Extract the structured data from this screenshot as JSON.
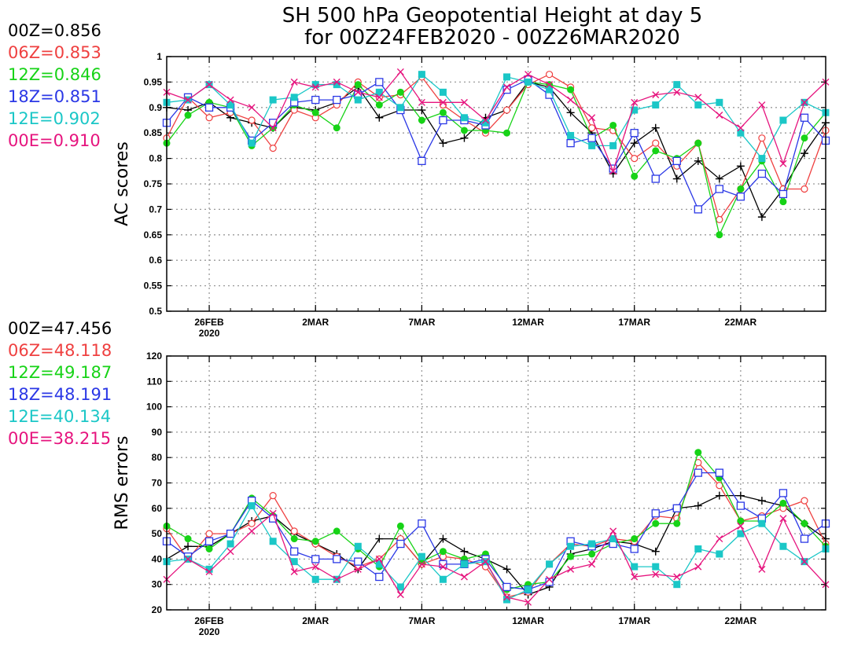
{
  "title": {
    "line1": "SH 500 hPa Geopotential Height at day 5",
    "line2": "for 00Z24FEB2020 - 00Z26MAR2020"
  },
  "series_style": [
    {
      "name": "00Z",
      "color": "#000000",
      "marker": "plus"
    },
    {
      "name": "06Z",
      "color": "#ef4040",
      "marker": "circle-open"
    },
    {
      "name": "12Z",
      "color": "#17d317",
      "marker": "circle-filled"
    },
    {
      "name": "18Z",
      "color": "#2b38e6",
      "marker": "square-open"
    },
    {
      "name": "12E",
      "color": "#1bc7c7",
      "marker": "square-filled"
    },
    {
      "name": "00E",
      "color": "#e6147e",
      "marker": "cross"
    }
  ],
  "chart_data": [
    {
      "type": "line",
      "ylabel": "AC scores",
      "ylim": [
        0.5,
        1
      ],
      "yticks": [
        "0.5",
        "0.55",
        "0.6",
        "0.65",
        "0.7",
        "0.75",
        "0.8",
        "0.85",
        "0.9",
        "0.95",
        "1"
      ],
      "x": [
        "24FEB",
        "25FEB",
        "26FEB",
        "27FEB",
        "28FEB",
        "29FEB",
        "1MAR",
        "2MAR",
        "3MAR",
        "4MAR",
        "5MAR",
        "6MAR",
        "7MAR",
        "8MAR",
        "9MAR",
        "10MAR",
        "11MAR",
        "12MAR",
        "13MAR",
        "14MAR",
        "15MAR",
        "16MAR",
        "17MAR",
        "18MAR",
        "19MAR",
        "20MAR",
        "21MAR",
        "22MAR",
        "23MAR",
        "24MAR",
        "25MAR",
        "26MAR"
      ],
      "xticks": [
        {
          "label": "26FEB",
          "sub": "2020",
          "at": "26FEB"
        },
        {
          "label": "2MAR",
          "sub": "",
          "at": "2MAR"
        },
        {
          "label": "7MAR",
          "sub": "",
          "at": "7MAR"
        },
        {
          "label": "12MAR",
          "sub": "",
          "at": "12MAR"
        },
        {
          "label": "17MAR",
          "sub": "",
          "at": "17MAR"
        },
        {
          "label": "22MAR",
          "sub": "",
          "at": "22MAR"
        }
      ],
      "legend": [
        "00Z=0.856",
        "06Z=0.853",
        "12Z=0.846",
        "18Z=0.851",
        "12E=0.902",
        "00E=0.910"
      ],
      "series": [
        {
          "name": "00Z",
          "values": [
            0.9,
            0.895,
            0.91,
            0.88,
            0.87,
            0.86,
            0.9,
            0.895,
            0.91,
            0.94,
            0.88,
            0.895,
            0.895,
            0.83,
            0.84,
            0.88,
            0.895,
            0.95,
            0.94,
            0.89,
            0.85,
            0.77,
            0.83,
            0.86,
            0.76,
            0.795,
            0.76,
            0.785,
            0.685,
            0.74,
            0.81,
            0.87
          ]
        },
        {
          "name": "06Z",
          "values": [
            0.84,
            0.92,
            0.88,
            0.89,
            0.875,
            0.82,
            0.895,
            0.88,
            0.905,
            0.95,
            0.92,
            0.925,
            0.96,
            0.905,
            0.875,
            0.85,
            0.895,
            0.945,
            0.965,
            0.94,
            0.86,
            0.855,
            0.8,
            0.83,
            0.785,
            0.83,
            0.68,
            0.74,
            0.84,
            0.74,
            0.74,
            0.855
          ]
        },
        {
          "name": "12Z",
          "values": [
            0.83,
            0.885,
            0.91,
            0.9,
            0.825,
            0.86,
            0.905,
            0.89,
            0.86,
            0.945,
            0.905,
            0.93,
            0.875,
            0.89,
            0.855,
            0.855,
            0.85,
            0.95,
            0.945,
            0.935,
            0.84,
            0.865,
            0.765,
            0.815,
            0.8,
            0.83,
            0.65,
            0.74,
            0.795,
            0.715,
            0.84,
            0.89
          ]
        },
        {
          "name": "18Z",
          "values": [
            0.87,
            0.92,
            0.9,
            0.9,
            0.835,
            0.87,
            0.91,
            0.915,
            0.915,
            0.925,
            0.95,
            0.895,
            0.795,
            0.875,
            0.875,
            0.865,
            0.935,
            0.955,
            0.925,
            0.83,
            0.84,
            0.78,
            0.85,
            0.76,
            0.795,
            0.7,
            0.74,
            0.725,
            0.77,
            0.73,
            0.88,
            0.835
          ]
        },
        {
          "name": "12E",
          "values": [
            0.91,
            0.915,
            0.945,
            0.905,
            0.83,
            0.915,
            0.92,
            0.945,
            0.945,
            0.915,
            0.93,
            0.9,
            0.965,
            0.93,
            0.88,
            0.87,
            0.96,
            0.95,
            0.935,
            0.845,
            0.825,
            0.825,
            0.895,
            0.905,
            0.945,
            0.905,
            0.91,
            0.85,
            0.8,
            0.875,
            0.91,
            0.89
          ]
        },
        {
          "name": "00E",
          "values": [
            0.93,
            0.915,
            0.945,
            0.915,
            0.9,
            0.86,
            0.95,
            0.94,
            0.95,
            0.93,
            0.92,
            0.97,
            0.91,
            0.91,
            0.91,
            0.875,
            0.94,
            0.965,
            0.945,
            0.915,
            0.88,
            0.775,
            0.91,
            0.925,
            0.93,
            0.92,
            0.885,
            0.86,
            0.905,
            0.79,
            0.91,
            0.95
          ]
        }
      ]
    },
    {
      "type": "line",
      "ylabel": "RMS errors",
      "ylim": [
        20,
        120
      ],
      "yticks": [
        "20",
        "30",
        "40",
        "50",
        "60",
        "70",
        "80",
        "90",
        "100",
        "110",
        "120"
      ],
      "x": [
        "24FEB",
        "25FEB",
        "26FEB",
        "27FEB",
        "28FEB",
        "29FEB",
        "1MAR",
        "2MAR",
        "3MAR",
        "4MAR",
        "5MAR",
        "6MAR",
        "7MAR",
        "8MAR",
        "9MAR",
        "10MAR",
        "11MAR",
        "12MAR",
        "13MAR",
        "14MAR",
        "15MAR",
        "16MAR",
        "17MAR",
        "18MAR",
        "19MAR",
        "20MAR",
        "21MAR",
        "22MAR",
        "23MAR",
        "24MAR",
        "25MAR",
        "26MAR"
      ],
      "xticks": [
        {
          "label": "26FEB",
          "sub": "2020",
          "at": "26FEB"
        },
        {
          "label": "2MAR",
          "sub": "",
          "at": "2MAR"
        },
        {
          "label": "7MAR",
          "sub": "",
          "at": "7MAR"
        },
        {
          "label": "12MAR",
          "sub": "",
          "at": "12MAR"
        },
        {
          "label": "17MAR",
          "sub": "",
          "at": "17MAR"
        },
        {
          "label": "22MAR",
          "sub": "",
          "at": "22MAR"
        }
      ],
      "legend": [
        "00Z=47.456",
        "06Z=48.118",
        "12Z=49.187",
        "18Z=48.191",
        "12E=40.134",
        "00E=38.215"
      ],
      "series": [
        {
          "name": "00Z",
          "values": [
            40,
            45,
            45,
            50,
            55,
            57,
            50,
            46,
            42,
            36,
            48,
            48,
            38,
            48,
            43,
            40,
            36,
            26,
            29,
            42,
            44,
            47,
            46,
            43,
            60,
            61,
            65,
            65,
            63,
            61,
            54,
            48
          ]
        },
        {
          "name": "06Z",
          "values": [
            52,
            40,
            50,
            50,
            54,
            65,
            51,
            46,
            41,
            37,
            40,
            48,
            38,
            41,
            40,
            37,
            25,
            27,
            38,
            46,
            45,
            48,
            47,
            57,
            56,
            78,
            69,
            55,
            57,
            60,
            63,
            46
          ]
        },
        {
          "name": "12Z",
          "values": [
            53,
            48,
            44,
            50,
            64,
            57,
            48,
            47,
            51,
            44,
            37,
            53,
            39,
            43,
            40,
            42,
            28,
            30,
            31,
            41,
            42,
            46,
            48,
            54,
            54,
            82,
            72,
            55,
            55,
            62,
            54,
            45
          ]
        },
        {
          "name": "18Z",
          "values": [
            47,
            41,
            47,
            50,
            63,
            56,
            43,
            40,
            40,
            39,
            33,
            46,
            54,
            38,
            38,
            40,
            29,
            28,
            31,
            47,
            45,
            46,
            44,
            58,
            60,
            74,
            74,
            61,
            56,
            66,
            48,
            54
          ]
        },
        {
          "name": "12E",
          "values": [
            39,
            40,
            36,
            46,
            61,
            47,
            39,
            32,
            32,
            45,
            38,
            29,
            41,
            32,
            38,
            39,
            24,
            28,
            38,
            45,
            46,
            48,
            37,
            37,
            30,
            44,
            42,
            50,
            54,
            45,
            39,
            44
          ]
        },
        {
          "name": "00E",
          "values": [
            32,
            40,
            35,
            43,
            51,
            58,
            35,
            37,
            32,
            36,
            40,
            26,
            38,
            37,
            33,
            39,
            25,
            23,
            32,
            36,
            38,
            51,
            33,
            34,
            33,
            37,
            48,
            53,
            36,
            56,
            39,
            30
          ]
        }
      ]
    }
  ]
}
